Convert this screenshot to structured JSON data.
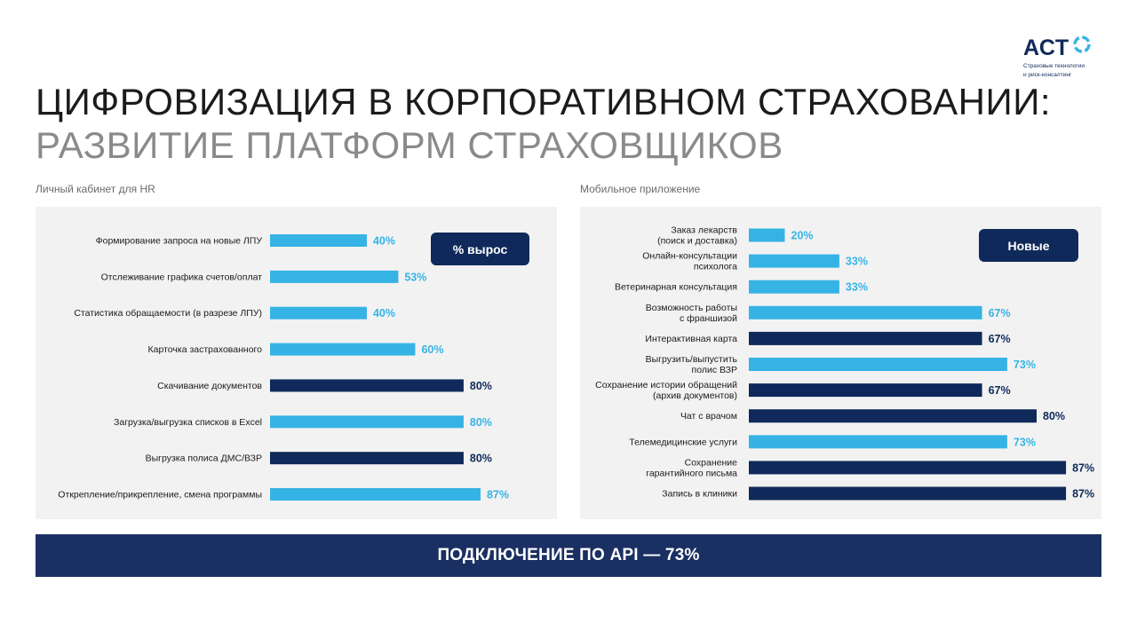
{
  "logo": {
    "name": "АСТ",
    "tagline_line1": "Страховые технологии",
    "tagline_line2": "и риск-консалтинг"
  },
  "title": "ЦИФРОВИЗАЦИЯ В КОРПОРАТИВНОМ СТРАХОВАНИИ:",
  "subtitle": "РАЗВИТИЕ ПЛАТФОРМ СТРАХОВЩИКОВ",
  "colors": {
    "light": "#36b3e5",
    "dark": "#0f2a5a"
  },
  "chart_data": [
    {
      "type": "bar",
      "orientation": "horizontal",
      "title": "Личный кабинет для HR",
      "badge": "% вырос",
      "unit": "%",
      "items": [
        {
          "label": [
            "Формирование запроса на новые ЛПУ"
          ],
          "value": 40,
          "color": "light"
        },
        {
          "label": [
            "Отслеживание графика счетов/оплат"
          ],
          "value": 53,
          "color": "light"
        },
        {
          "label": [
            "Статистика обращаемости (в разрезе ЛПУ)"
          ],
          "value": 40,
          "color": "light"
        },
        {
          "label": [
            "Карточка застрахованного"
          ],
          "value": 60,
          "color": "light"
        },
        {
          "label": [
            "Скачивание документов"
          ],
          "value": 80,
          "color": "dark"
        },
        {
          "label": [
            "Загрузка/выгрузка списков в Excel"
          ],
          "value": 80,
          "color": "light"
        },
        {
          "label": [
            "Выгрузка полиса ДМС/ВЗР"
          ],
          "value": 80,
          "color": "dark"
        },
        {
          "label": [
            "Открепление/прикрепление, смена программы"
          ],
          "value": 87,
          "color": "light"
        }
      ]
    },
    {
      "type": "bar",
      "orientation": "horizontal",
      "title": "Мобильное приложение",
      "badge": "Новые",
      "unit": "%",
      "items": [
        {
          "label": [
            "Заказ лекарств",
            "(поиск и доставка)"
          ],
          "value": 20,
          "color": "light"
        },
        {
          "label": [
            "Онлайн-консультации",
            "психолога"
          ],
          "value": 33,
          "color": "light"
        },
        {
          "label": [
            "Ветеринарная консультация"
          ],
          "value": 33,
          "color": "light"
        },
        {
          "label": [
            "Возможность работы",
            "с франшизой"
          ],
          "value": 67,
          "color": "light"
        },
        {
          "label": [
            "Интерактивная карта"
          ],
          "value": 67,
          "color": "dark"
        },
        {
          "label": [
            "Выгрузить/выпустить",
            "полис ВЗР"
          ],
          "value": 73,
          "color": "light"
        },
        {
          "label": [
            "Сохранение истории обращений",
            "(архив документов)"
          ],
          "value": 67,
          "color": "dark"
        },
        {
          "label": [
            "Чат с врачом"
          ],
          "value": 80,
          "color": "dark"
        },
        {
          "label": [
            "Телемедицинские услуги"
          ],
          "value": 73,
          "color": "light"
        },
        {
          "label": [
            "Сохранение",
            "гарантийного письма"
          ],
          "value": 87,
          "color": "dark"
        },
        {
          "label": [
            "Запись в клиники"
          ],
          "value": 87,
          "color": "dark"
        }
      ]
    }
  ],
  "footer": "ПОДКЛЮЧЕНИЕ ПО API — 73%"
}
